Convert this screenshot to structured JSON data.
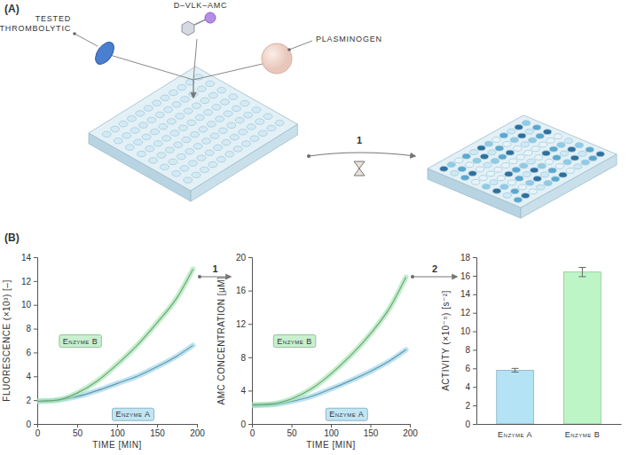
{
  "diagram": {
    "panel_label": "(A)",
    "thrombolytic": "TESTED THROMBOLYTIC",
    "substrate": "D–VLK–AMC",
    "plasminogen": "PLASMINOGEN",
    "step": "1"
  },
  "panel_b": {
    "panel_label": "(B)",
    "steps": [
      "1",
      "2"
    ]
  },
  "chart_data": [
    {
      "type": "line",
      "x_label": "TIME [MIN]",
      "y_label": "FLUORESCENCE (×10³) [–]",
      "x": [
        0,
        25,
        50,
        75,
        100,
        125,
        150,
        175,
        195
      ],
      "xlim": [
        0,
        200
      ],
      "xticks": [
        0,
        50,
        100,
        150,
        200
      ],
      "ylim": [
        0,
        14
      ],
      "yticks": [
        0,
        2,
        4,
        6,
        8,
        10,
        12,
        14
      ],
      "series": [
        {
          "name": "Enzyme A",
          "color": "#8fd0ea",
          "values": [
            1.9,
            2.0,
            2.3,
            2.8,
            3.4,
            4.0,
            4.8,
            5.7,
            6.6
          ]
        },
        {
          "name": "Enzyme B",
          "color": "#9be3a8",
          "values": [
            1.9,
            2.0,
            2.6,
            3.6,
            5.0,
            6.6,
            8.5,
            10.6,
            13.0
          ]
        }
      ]
    },
    {
      "type": "line",
      "x_label": "TIME [MIN]",
      "y_label": "AMC CONCENTRATION [µM]",
      "x": [
        0,
        25,
        50,
        75,
        100,
        125,
        150,
        175,
        195
      ],
      "xlim": [
        0,
        200
      ],
      "xticks": [
        0,
        50,
        100,
        150,
        200
      ],
      "ylim": [
        0,
        20
      ],
      "yticks": [
        0,
        4,
        8,
        12,
        16,
        20
      ],
      "series": [
        {
          "name": "Enzyme A",
          "color": "#8fd0ea",
          "values": [
            2.2,
            2.3,
            2.7,
            3.3,
            4.2,
            5.2,
            6.3,
            7.6,
            8.9
          ]
        },
        {
          "name": "Enzyme B",
          "color": "#9be3a8",
          "values": [
            2.3,
            2.4,
            3.0,
            4.2,
            6.0,
            8.2,
            10.8,
            14.0,
            17.6
          ]
        }
      ]
    },
    {
      "type": "bar",
      "y_label": "ACTIVITY (×10⁻⁵) [s⁻²]",
      "categories": [
        "Enzyme A",
        "Enzyme B"
      ],
      "values": [
        5.8,
        16.4
      ],
      "errors": [
        0.2,
        0.5
      ],
      "colors": [
        "#b3e3f4",
        "#bdf5c6"
      ],
      "ylim": [
        0,
        18
      ],
      "yticks": [
        0,
        2,
        4,
        6,
        8,
        10,
        12,
        14,
        16,
        18
      ]
    }
  ]
}
